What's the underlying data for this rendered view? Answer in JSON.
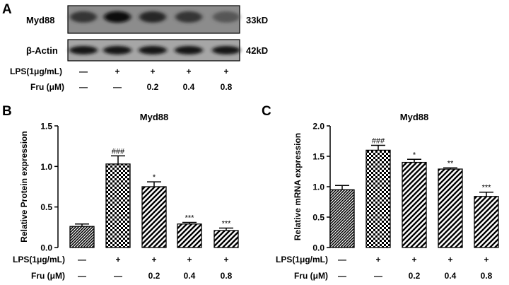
{
  "panels": {
    "A": {
      "letter": "A",
      "blots": [
        {
          "protein": "Myd88",
          "size": "33kD",
          "intensities": [
            0.62,
            0.95,
            0.72,
            0.62,
            0.38
          ]
        },
        {
          "protein": "β-Actin",
          "size": "42kD",
          "intensities": [
            0.82,
            0.86,
            0.84,
            0.83,
            0.82
          ]
        }
      ],
      "conditions": {
        "lps_label": "LPS(1μg/mL)",
        "lps": [
          "—",
          "+",
          "+",
          "+",
          "+"
        ],
        "fru_label": "Fru (μM)",
        "fru": [
          "—",
          "—",
          "0.2",
          "0.4",
          "0.8"
        ]
      }
    },
    "B": {
      "letter": "B"
    },
    "C": {
      "letter": "C"
    }
  },
  "chart_data": [
    {
      "type": "bar",
      "panel": "B",
      "title": "Myd88",
      "ylabel": "Relative Protein expression",
      "ylim": [
        0.0,
        1.5
      ],
      "yticks": [
        "0.0",
        "0.5",
        "1.0",
        "1.5"
      ],
      "values": [
        0.26,
        1.03,
        0.75,
        0.29,
        0.21
      ],
      "errors": [
        0.03,
        0.1,
        0.06,
        0.02,
        0.03
      ],
      "significance": [
        "",
        "###",
        "*",
        "***",
        "***"
      ],
      "patterns": [
        "dense-hatch",
        "check",
        "hatch",
        "hatch",
        "hatch"
      ],
      "conditions": {
        "lps_label": "LPS(1μg/mL)",
        "lps": [
          "—",
          "+",
          "+",
          "+",
          "+"
        ],
        "fru_label": "Fru (μM)",
        "fru": [
          "—",
          "—",
          "0.2",
          "0.4",
          "0.8"
        ]
      }
    },
    {
      "type": "bar",
      "panel": "C",
      "title": "Myd88",
      "ylabel": "Relative mRNA expression",
      "ylim": [
        0.0,
        2.0
      ],
      "yticks": [
        "0.0",
        "0.5",
        "1.0",
        "1.5",
        "2.0"
      ],
      "values": [
        0.95,
        1.6,
        1.4,
        1.29,
        0.84
      ],
      "errors": [
        0.07,
        0.08,
        0.05,
        0.02,
        0.07
      ],
      "significance": [
        "",
        "###",
        "*",
        "**",
        "***"
      ],
      "patterns": [
        "dense-hatch",
        "check",
        "hatch",
        "hatch",
        "hatch"
      ],
      "conditions": {
        "lps_label": "LPS(1μg/mL)",
        "lps": [
          "—",
          "+",
          "+",
          "+",
          "+"
        ],
        "fru_label": "Fru (μM)",
        "fru": [
          "—",
          "—",
          "0.2",
          "0.4",
          "0.8"
        ]
      }
    }
  ]
}
